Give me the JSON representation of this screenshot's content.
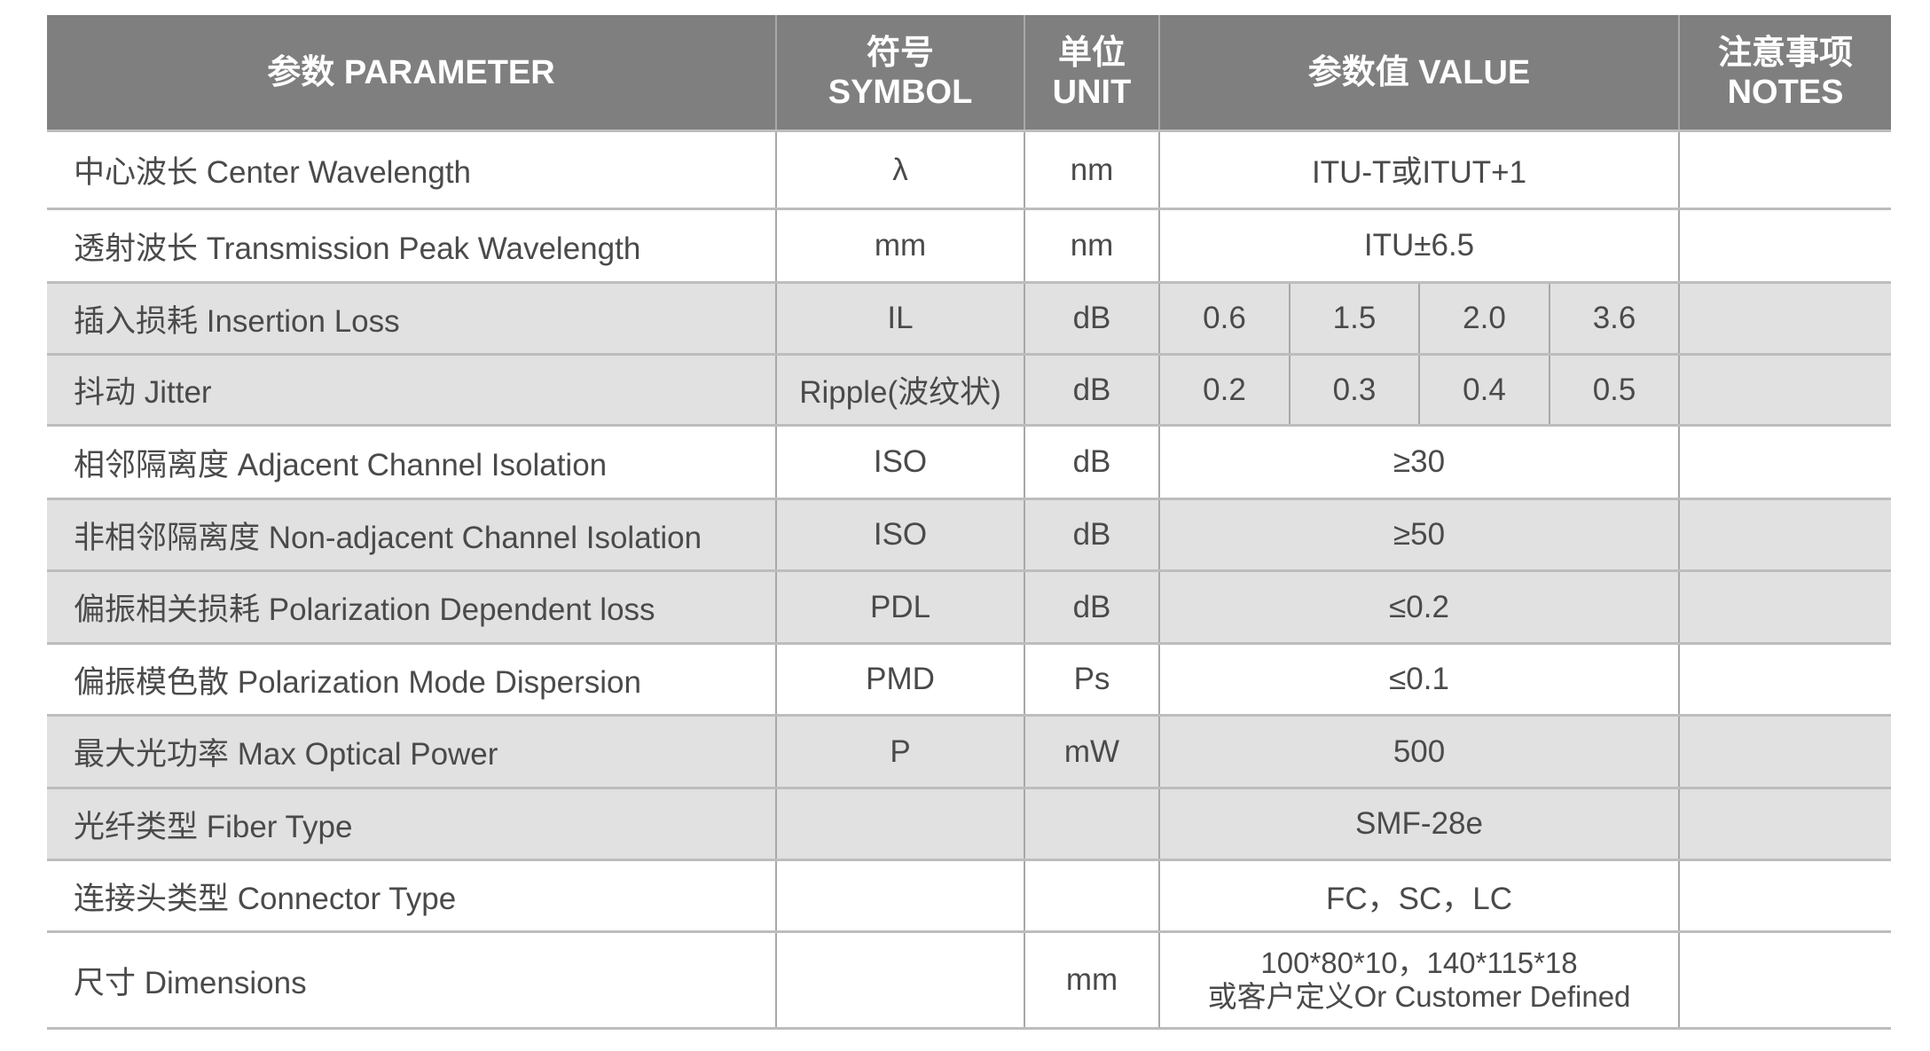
{
  "header": {
    "parameter": "参数  PARAMETER",
    "symbol_cn": "符号",
    "symbol_en": "SYMBOL",
    "unit_cn": "单位",
    "unit_en": "UNIT",
    "value": "参数值 VALUE",
    "notes_cn": "注意事项",
    "notes_en": "NOTES"
  },
  "rows": [
    {
      "parameter": "中心波长 Center Wavelength",
      "symbol": "λ",
      "unit": "nm",
      "value": "ITU-T或ITUT+1",
      "notes": ""
    },
    {
      "parameter": "透射波长 Transmission Peak Wavelength",
      "symbol": "mm",
      "unit": "nm",
      "value": "ITU±6.5",
      "notes": ""
    },
    {
      "parameter": "插入损耗 Insertion Loss",
      "symbol": "IL",
      "unit": "dB",
      "values": [
        "0.6",
        "1.5",
        "2.0",
        "3.6"
      ],
      "notes": ""
    },
    {
      "parameter": "抖动 Jitter",
      "symbol": "Ripple(波纹状)",
      "unit": "dB",
      "values": [
        "0.2",
        "0.3",
        "0.4",
        "0.5"
      ],
      "notes": ""
    },
    {
      "parameter": "相邻隔离度 Adjacent Channel  Isolation",
      "symbol": "ISO",
      "unit": "dB",
      "value": "≥30",
      "notes": ""
    },
    {
      "parameter": "非相邻隔离度 Non-adjacent Channel Isolation",
      "symbol": "ISO",
      "unit": "dB",
      "value": "≥50",
      "notes": ""
    },
    {
      "parameter": "偏振相关损耗 Polarization Dependent loss",
      "symbol": "PDL",
      "unit": "dB",
      "value": "≤0.2",
      "notes": ""
    },
    {
      "parameter": "偏振模色散 Polarization Mode Dispersion",
      "symbol": "PMD",
      "unit": "Ps",
      "value": "≤0.1",
      "notes": ""
    },
    {
      "parameter": "最大光功率 Max Optical Power",
      "symbol": "P",
      "unit": "mW",
      "value": "500",
      "notes": ""
    },
    {
      "parameter": "光纤类型 Fiber Type",
      "symbol": "",
      "unit": "",
      "value": "SMF-28e",
      "notes": ""
    },
    {
      "parameter": "连接头类型 Connector Type",
      "symbol": "",
      "unit": "",
      "value": "FC，SC，LC",
      "notes": ""
    },
    {
      "parameter": "尺寸 Dimensions",
      "symbol": "",
      "unit": "mm",
      "value_line1": "100*80*10，140*115*18",
      "value_line2": "或客户定义Or Customer Defined",
      "notes": ""
    }
  ],
  "colors": {
    "header_bg": "#7f7f7f",
    "shaded_row": "#e1e1e1",
    "text": "#4a4a4a"
  }
}
